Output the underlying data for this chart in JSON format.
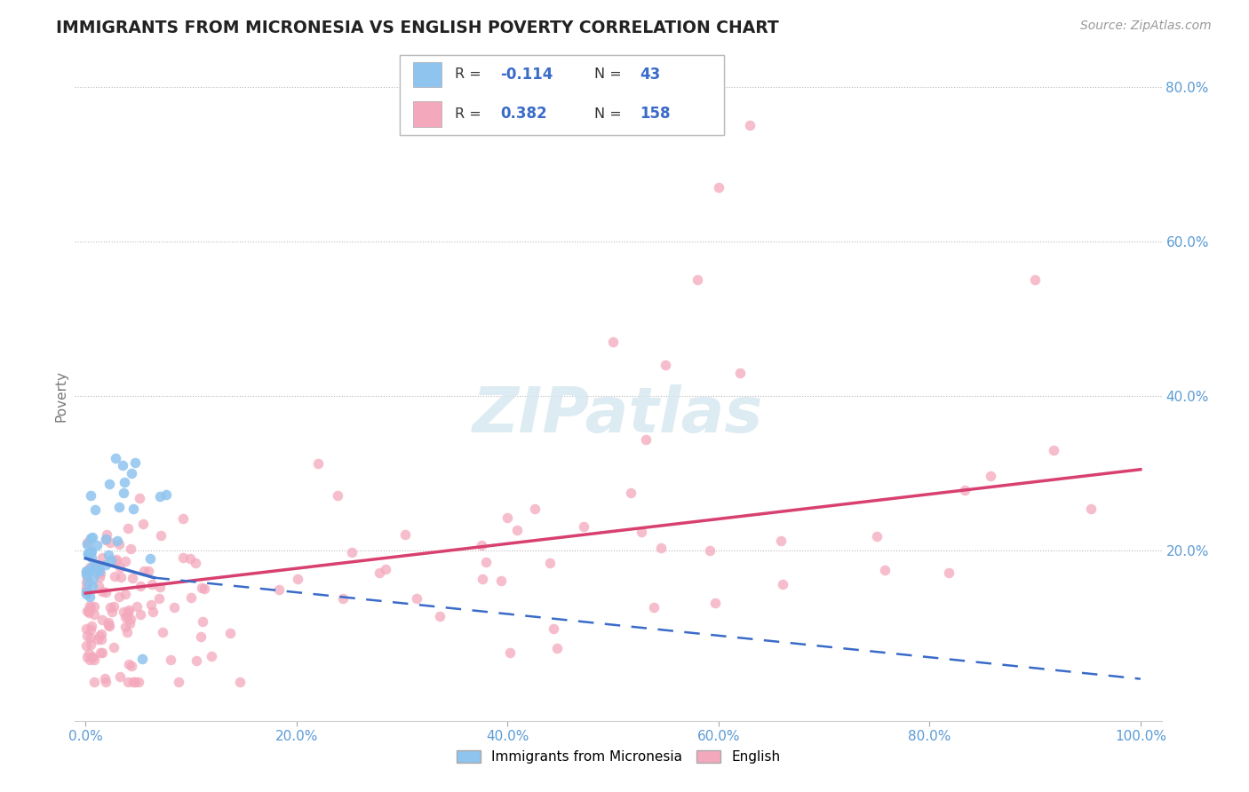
{
  "title": "IMMIGRANTS FROM MICRONESIA VS ENGLISH POVERTY CORRELATION CHART",
  "source": "Source: ZipAtlas.com",
  "ylabel": "Poverty",
  "xlim": [
    0.0,
    1.0
  ],
  "ylim": [
    0.0,
    0.8
  ],
  "blue_R": "-0.114",
  "blue_N": "43",
  "pink_R": "0.382",
  "pink_N": "158",
  "blue_color": "#8EC4EE",
  "pink_color": "#F4A8BC",
  "blue_line_color": "#3A6BC8",
  "pink_line_color": "#D84070",
  "axis_label_color": "#5B9BD5",
  "legend_R_color": "#3A6BC8",
  "watermark_color": "#D8E8F0",
  "grid_color": "#BBBBBB"
}
